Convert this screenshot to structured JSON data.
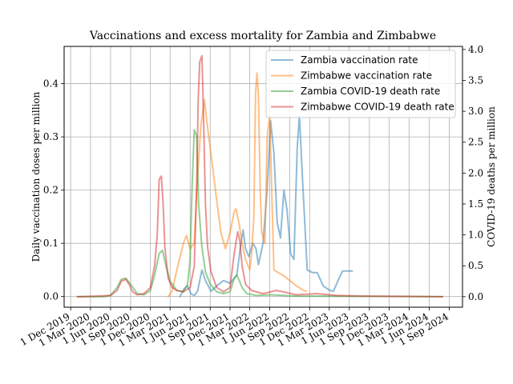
{
  "chart_data": {
    "type": "line",
    "title": "Vaccinations and excess mortality for Zambia and Zimbabwe",
    "ylabel_left": "Daily vaccination doses per million",
    "ylabel_right": "COVID-19 deaths per million",
    "x_ticks": [
      "1 Dec 2019",
      "1 Mar 2020",
      "1 Jun 2020",
      "1 Sep 2020",
      "1 Dec 2020",
      "1 Mar 2021",
      "1 Jun 2021",
      "1 Sep 2021",
      "1 Dec 2021",
      "1 Mar 2022",
      "1 Jun 2022",
      "1 Sep 2022",
      "1 Dec 2022",
      "1 Mar 2023",
      "1 Jun 2023",
      "1 Sep 2023",
      "1 Dec 2023",
      "1 Mar 2024",
      "1 Jun 2024",
      "1 Sep 2024"
    ],
    "y_left_ticks": [
      "0.0",
      "0.1",
      "0.2",
      "0.3",
      "0.4"
    ],
    "y_left_values": [
      0,
      0.1,
      0.2,
      0.3,
      0.4
    ],
    "y_right_ticks": [
      "0.0",
      "0.5",
      "1.0",
      "1.5",
      "2.0",
      "2.5",
      "3.0",
      "3.5",
      "4.0"
    ],
    "y_right_values": [
      0,
      0.5,
      1.0,
      1.5,
      2.0,
      2.5,
      3.0,
      3.5,
      4.0
    ],
    "ylim_left": [
      -0.02,
      0.47
    ],
    "ylim_right": [
      -0.17,
      4.05
    ],
    "grid": true,
    "legend_position": "top-right",
    "series": [
      {
        "name": "Zambia vaccination rate",
        "axis": "left",
        "color": "#1f77b4",
        "points": [
          [
            "2021-04-15",
            0
          ],
          [
            "2021-05-05",
            0.015
          ],
          [
            "2021-05-20",
            0.02
          ],
          [
            "2021-06-05",
            0.005
          ],
          [
            "2021-06-20",
            0.002
          ],
          [
            "2021-07-05",
            0.01
          ],
          [
            "2021-07-25",
            0.05
          ],
          [
            "2021-08-10",
            0.03
          ],
          [
            "2021-09-05",
            0.01
          ],
          [
            "2021-10-01",
            0.02
          ],
          [
            "2021-11-01",
            0.03
          ],
          [
            "2021-12-01",
            0.025
          ],
          [
            "2022-01-01",
            0.04
          ],
          [
            "2022-01-20",
            0.1
          ],
          [
            "2022-01-30",
            0.125
          ],
          [
            "2022-02-10",
            0.09
          ],
          [
            "2022-02-25",
            0.075
          ],
          [
            "2022-03-15",
            0.1
          ],
          [
            "2022-03-30",
            0.09
          ],
          [
            "2022-04-10",
            0.06
          ],
          [
            "2022-05-01",
            0.1
          ],
          [
            "2022-05-20",
            0.2
          ],
          [
            "2022-06-05",
            0.33
          ],
          [
            "2022-06-20",
            0.27
          ],
          [
            "2022-07-05",
            0.14
          ],
          [
            "2022-07-20",
            0.11
          ],
          [
            "2022-08-05",
            0.2
          ],
          [
            "2022-08-20",
            0.16
          ],
          [
            "2022-09-05",
            0.08
          ],
          [
            "2022-09-20",
            0.07
          ],
          [
            "2022-10-05",
            0.28
          ],
          [
            "2022-10-15",
            0.34
          ],
          [
            "2022-11-01",
            0.2
          ],
          [
            "2022-11-20",
            0.05
          ],
          [
            "2022-12-15",
            0.045
          ],
          [
            "2023-01-05",
            0.045
          ],
          [
            "2023-02-01",
            0.02
          ],
          [
            "2023-03-01",
            0.012
          ],
          [
            "2023-03-20",
            0.01
          ],
          [
            "2023-04-10",
            0.03
          ],
          [
            "2023-05-01",
            0.048
          ],
          [
            "2023-06-15",
            0.048
          ]
        ]
      },
      {
        "name": "Zimbabwe vaccination rate",
        "axis": "left",
        "color": "#ff7f0e",
        "points": [
          [
            "2021-02-20",
            0
          ],
          [
            "2021-03-10",
            0.01
          ],
          [
            "2021-04-01",
            0.05
          ],
          [
            "2021-05-01",
            0.1
          ],
          [
            "2021-05-15",
            0.115
          ],
          [
            "2021-06-01",
            0.09
          ],
          [
            "2021-06-20",
            0.1
          ],
          [
            "2021-07-01",
            0.2
          ],
          [
            "2021-07-20",
            0.32
          ],
          [
            "2021-08-05",
            0.37
          ],
          [
            "2021-08-25",
            0.3
          ],
          [
            "2021-09-10",
            0.25
          ],
          [
            "2021-10-01",
            0.18
          ],
          [
            "2021-10-20",
            0.12
          ],
          [
            "2021-11-10",
            0.09
          ],
          [
            "2021-12-01",
            0.12
          ],
          [
            "2021-12-20",
            0.16
          ],
          [
            "2021-12-28",
            0.165
          ],
          [
            "2022-01-10",
            0.14
          ],
          [
            "2022-01-25",
            0.1
          ],
          [
            "2022-02-10",
            0.07
          ],
          [
            "2022-03-01",
            0.05
          ],
          [
            "2022-03-10",
            0.08
          ],
          [
            "2022-03-20",
            0.15
          ],
          [
            "2022-03-28",
            0.38
          ],
          [
            "2022-04-03",
            0.42
          ],
          [
            "2022-04-10",
            0.38
          ],
          [
            "2022-04-18",
            0.2
          ],
          [
            "2022-04-25",
            0.12
          ],
          [
            "2022-05-10",
            0.1
          ],
          [
            "2022-05-20",
            0.3
          ],
          [
            "2022-06-01",
            0.34
          ],
          [
            "2022-06-10",
            0.2
          ],
          [
            "2022-06-20",
            0.05
          ],
          [
            "2022-07-10",
            0.045
          ],
          [
            "2022-08-01",
            0.04
          ],
          [
            "2022-09-01",
            0.03
          ],
          [
            "2022-10-01",
            0.02
          ],
          [
            "2022-11-01",
            0.012
          ],
          [
            "2022-11-15",
            0.01
          ]
        ]
      },
      {
        "name": "Zambia COVID-19 death rate",
        "axis": "right",
        "color": "#2ca02c",
        "points": [
          [
            "2020-01-01",
            0
          ],
          [
            "2020-05-01",
            0
          ],
          [
            "2020-06-01",
            0.02
          ],
          [
            "2020-07-01",
            0.15
          ],
          [
            "2020-07-20",
            0.28
          ],
          [
            "2020-08-10",
            0.3
          ],
          [
            "2020-09-01",
            0.2
          ],
          [
            "2020-10-01",
            0.05
          ],
          [
            "2020-11-01",
            0.03
          ],
          [
            "2020-12-01",
            0.1
          ],
          [
            "2020-12-20",
            0.35
          ],
          [
            "2021-01-10",
            0.7
          ],
          [
            "2021-01-25",
            0.75
          ],
          [
            "2021-02-10",
            0.5
          ],
          [
            "2021-03-01",
            0.25
          ],
          [
            "2021-04-01",
            0.1
          ],
          [
            "2021-05-01",
            0.08
          ],
          [
            "2021-05-20",
            0.2
          ],
          [
            "2021-06-01",
            0.6
          ],
          [
            "2021-06-10",
            1.8
          ],
          [
            "2021-06-20",
            2.7
          ],
          [
            "2021-07-01",
            2.6
          ],
          [
            "2021-07-10",
            1.5
          ],
          [
            "2021-07-25",
            0.8
          ],
          [
            "2021-08-10",
            0.4
          ],
          [
            "2021-09-01",
            0.2
          ],
          [
            "2021-10-01",
            0.08
          ],
          [
            "2021-11-01",
            0.05
          ],
          [
            "2021-12-01",
            0.08
          ],
          [
            "2021-12-20",
            0.3
          ],
          [
            "2022-01-01",
            0.35
          ],
          [
            "2022-01-10",
            0.28
          ],
          [
            "2022-01-25",
            0.15
          ],
          [
            "2022-02-15",
            0.05
          ],
          [
            "2022-04-01",
            0.02
          ],
          [
            "2022-06-01",
            0.03
          ],
          [
            "2022-08-01",
            0.02
          ],
          [
            "2022-10-01",
            0.01
          ],
          [
            "2023-01-01",
            0.01
          ],
          [
            "2024-08-01",
            0
          ]
        ]
      },
      {
        "name": "Zimbabwe COVID-19 death rate",
        "axis": "right",
        "color": "#d62728",
        "points": [
          [
            "2020-01-01",
            0
          ],
          [
            "2020-04-01",
            0.01
          ],
          [
            "2020-06-01",
            0.02
          ],
          [
            "2020-07-01",
            0.1
          ],
          [
            "2020-07-20",
            0.25
          ],
          [
            "2020-08-10",
            0.28
          ],
          [
            "2020-08-25",
            0.2
          ],
          [
            "2020-09-10",
            0.08
          ],
          [
            "2020-10-01",
            0.03
          ],
          [
            "2020-11-01",
            0.05
          ],
          [
            "2020-12-01",
            0.15
          ],
          [
            "2020-12-20",
            0.5
          ],
          [
            "2021-01-01",
            1.0
          ],
          [
            "2021-01-10",
            1.9
          ],
          [
            "2021-01-20",
            1.95
          ],
          [
            "2021-01-28",
            1.5
          ],
          [
            "2021-02-05",
            0.8
          ],
          [
            "2021-02-20",
            0.3
          ],
          [
            "2021-03-10",
            0.15
          ],
          [
            "2021-04-01",
            0.1
          ],
          [
            "2021-05-01",
            0.08
          ],
          [
            "2021-06-01",
            0.15
          ],
          [
            "2021-06-20",
            0.5
          ],
          [
            "2021-07-01",
            1.8
          ],
          [
            "2021-07-08",
            3.2
          ],
          [
            "2021-07-15",
            3.8
          ],
          [
            "2021-07-25",
            3.9
          ],
          [
            "2021-08-01",
            3.0
          ],
          [
            "2021-08-10",
            1.5
          ],
          [
            "2021-08-20",
            0.8
          ],
          [
            "2021-09-05",
            0.4
          ],
          [
            "2021-10-01",
            0.15
          ],
          [
            "2021-11-01",
            0.08
          ],
          [
            "2021-12-01",
            0.15
          ],
          [
            "2021-12-20",
            0.7
          ],
          [
            "2022-01-05",
            1.05
          ],
          [
            "2022-01-15",
            0.9
          ],
          [
            "2022-01-25",
            0.5
          ],
          [
            "2022-02-10",
            0.2
          ],
          [
            "2022-03-10",
            0.1
          ],
          [
            "2022-05-01",
            0.05
          ],
          [
            "2022-07-01",
            0.1
          ],
          [
            "2022-08-01",
            0.08
          ],
          [
            "2022-10-01",
            0.03
          ],
          [
            "2023-01-01",
            0.05
          ],
          [
            "2023-04-01",
            0.02
          ],
          [
            "2023-08-01",
            0.01
          ],
          [
            "2024-08-01",
            0
          ]
        ]
      }
    ]
  }
}
